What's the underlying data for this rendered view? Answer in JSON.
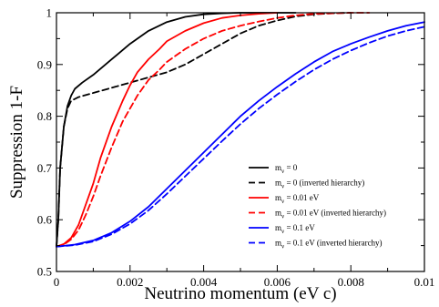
{
  "chart_data": {
    "type": "line",
    "title": "",
    "xlabel": "Neutrino momentum (eV c)",
    "ylabel": "Suppression 1-F",
    "xlim": [
      0,
      0.01
    ],
    "ylim": [
      0.5,
      1.0
    ],
    "xticks": [
      "0",
      "0.002",
      "0.004",
      "0.006",
      "0.008",
      "0.01"
    ],
    "yticks": [
      "0.5",
      "0.6",
      "0.7",
      "0.8",
      "0.9",
      "1"
    ],
    "legend_position": "center-right",
    "series": [
      {
        "name": "m",
        "name_sub": "ν",
        "name_rest": " = 0",
        "color": "#000000",
        "dash": false,
        "x": [
          0,
          5e-05,
          0.0001,
          0.0002,
          0.0003,
          0.0004,
          0.0005,
          0.0007,
          0.001,
          0.0015,
          0.002,
          0.0025,
          0.003,
          0.0035,
          0.004,
          0.0045,
          0.005,
          0.0055,
          0.006,
          0.0065
        ],
        "y": [
          0.548,
          0.6,
          0.7,
          0.78,
          0.82,
          0.84,
          0.853,
          0.865,
          0.88,
          0.91,
          0.94,
          0.965,
          0.982,
          0.992,
          0.997,
          0.999,
          1.0,
          1.0,
          1.0,
          1.0
        ]
      },
      {
        "name": "m",
        "name_sub": "ν",
        "name_rest": " = 0 (inverted hierarchy)",
        "color": "#000000",
        "dash": true,
        "x": [
          0,
          5e-05,
          0.0001,
          0.0002,
          0.0003,
          0.0004,
          0.0006,
          0.001,
          0.0015,
          0.002,
          0.0025,
          0.003,
          0.0035,
          0.004,
          0.0045,
          0.005,
          0.0055,
          0.006,
          0.0065,
          0.007,
          0.0075,
          0.008
        ],
        "y": [
          0.548,
          0.6,
          0.7,
          0.78,
          0.815,
          0.83,
          0.837,
          0.845,
          0.855,
          0.865,
          0.875,
          0.885,
          0.9,
          0.92,
          0.94,
          0.96,
          0.975,
          0.985,
          0.993,
          0.997,
          0.999,
          1.0
        ]
      },
      {
        "name": "m",
        "name_sub": "ν",
        "name_rest": " = 0.01 eV",
        "color": "#ff0000",
        "dash": false,
        "x": [
          0,
          0.0002,
          0.0004,
          0.0006,
          0.0008,
          0.001,
          0.0012,
          0.0015,
          0.0018,
          0.002,
          0.0022,
          0.0025,
          0.0028,
          0.003,
          0.0035,
          0.004,
          0.0045,
          0.005,
          0.0055,
          0.006
        ],
        "y": [
          0.548,
          0.553,
          0.565,
          0.59,
          0.63,
          0.67,
          0.72,
          0.78,
          0.83,
          0.86,
          0.885,
          0.91,
          0.93,
          0.945,
          0.965,
          0.98,
          0.99,
          0.995,
          0.998,
          1.0
        ]
      },
      {
        "name": "m",
        "name_sub": "ν",
        "name_rest": " = 0.01 eV (inverted hierarchy)",
        "color": "#ff0000",
        "dash": true,
        "x": [
          0,
          0.0002,
          0.0004,
          0.0006,
          0.0008,
          0.001,
          0.0012,
          0.0015,
          0.0018,
          0.002,
          0.0022,
          0.0025,
          0.0028,
          0.003,
          0.0035,
          0.004,
          0.0045,
          0.005,
          0.0055,
          0.006,
          0.0065,
          0.007,
          0.0075,
          0.008,
          0.0085
        ],
        "y": [
          0.548,
          0.552,
          0.562,
          0.58,
          0.61,
          0.645,
          0.685,
          0.74,
          0.79,
          0.815,
          0.84,
          0.87,
          0.89,
          0.905,
          0.93,
          0.95,
          0.965,
          0.975,
          0.983,
          0.99,
          0.995,
          0.998,
          0.999,
          1.0,
          1.0
        ]
      },
      {
        "name": "m",
        "name_sub": "ν",
        "name_rest": " = 0.1 eV",
        "color": "#0000ff",
        "dash": false,
        "x": [
          0,
          0.0005,
          0.001,
          0.0015,
          0.002,
          0.0025,
          0.003,
          0.0035,
          0.004,
          0.0045,
          0.005,
          0.0055,
          0.006,
          0.0065,
          0.007,
          0.0075,
          0.008,
          0.0085,
          0.009,
          0.0095,
          0.01
        ],
        "y": [
          0.548,
          0.552,
          0.56,
          0.575,
          0.597,
          0.625,
          0.66,
          0.695,
          0.73,
          0.765,
          0.8,
          0.83,
          0.857,
          0.882,
          0.905,
          0.925,
          0.94,
          0.953,
          0.965,
          0.975,
          0.982
        ]
      },
      {
        "name": "m",
        "name_sub": "ν",
        "name_rest": " = 0.1 eV (inverted hierarchy)",
        "color": "#0000ff",
        "dash": true,
        "x": [
          0,
          0.0005,
          0.001,
          0.0015,
          0.002,
          0.0025,
          0.003,
          0.0035,
          0.004,
          0.0045,
          0.005,
          0.0055,
          0.006,
          0.0065,
          0.007,
          0.0075,
          0.008,
          0.0085,
          0.009,
          0.0095,
          0.01
        ],
        "y": [
          0.548,
          0.551,
          0.558,
          0.572,
          0.592,
          0.618,
          0.65,
          0.684,
          0.718,
          0.752,
          0.785,
          0.815,
          0.842,
          0.867,
          0.89,
          0.91,
          0.927,
          0.942,
          0.955,
          0.965,
          0.973
        ]
      }
    ]
  }
}
